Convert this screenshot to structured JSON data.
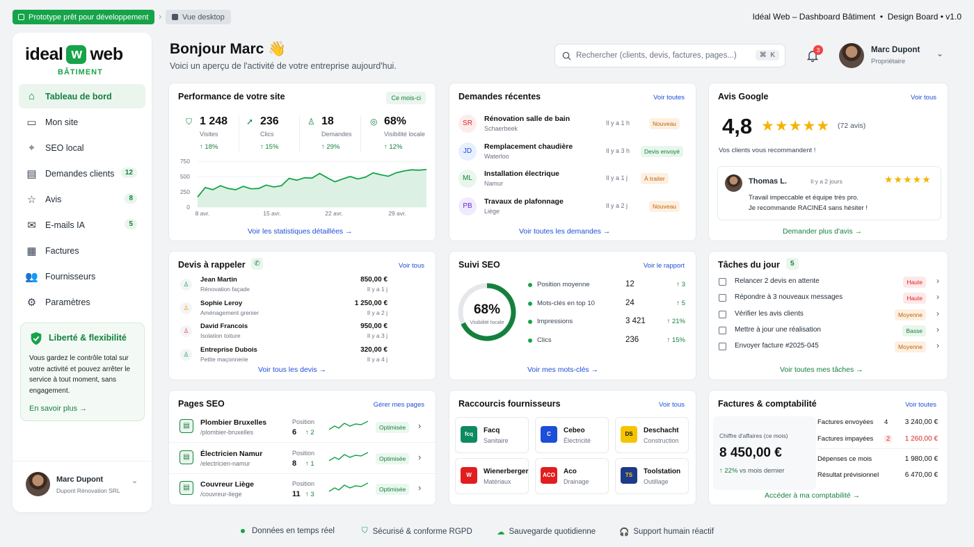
{
  "topbar": {
    "prototype_label": "Prototype prêt pour développement",
    "view_label": "Vue desktop",
    "title": "Idéal Web – Dashboard Bâtiment  •  Design Board • v1.0"
  },
  "brand": {
    "left": "ideal",
    "mark": "w",
    "right": "web",
    "sub": "BÂTIMENT"
  },
  "sidebar": {
    "items": [
      {
        "label": "Tableau de bord",
        "icon": "home-icon",
        "badge": ""
      },
      {
        "label": "Mon site",
        "icon": "monitor-icon",
        "badge": ""
      },
      {
        "label": "SEO local",
        "icon": "map-pin-icon",
        "badge": ""
      },
      {
        "label": "Demandes clients",
        "icon": "document-icon",
        "badge": "12"
      },
      {
        "label": "Avis",
        "icon": "star-icon",
        "badge": "8"
      },
      {
        "label": "E-mails IA",
        "icon": "mail-icon",
        "badge": "5"
      },
      {
        "label": "Factures",
        "icon": "invoice-icon",
        "badge": ""
      },
      {
        "label": "Fournisseurs",
        "icon": "users-icon",
        "badge": ""
      },
      {
        "label": "Paramètres",
        "icon": "gear-icon",
        "badge": ""
      }
    ],
    "promo": {
      "title": "Liberté & flexibilité",
      "text": "Vous gardez le contrôle total sur votre activité et pouvez arrêter le service à tout moment, sans engagement.",
      "link": "En savoir plus"
    },
    "user": {
      "name": "Marc Dupont",
      "company": "Dupont Rénovation SRL"
    }
  },
  "header": {
    "greeting": "Bonjour Marc 👋",
    "subtitle": "Voici un aperçu de l'activité de votre entreprise aujourd'hui.",
    "search_placeholder": "Rechercher (clients, devis, factures, pages...)",
    "search_kbd": "⌘  K",
    "notifications": "3",
    "user_name": "Marc Dupont",
    "user_role": "Propriétaire"
  },
  "performance": {
    "title": "Performance de votre site",
    "period": "Ce mois-ci",
    "link": "Voir les statistiques détaillées",
    "kpis": [
      {
        "value": "1 248",
        "label": "Visites",
        "delta": "↑ 18%"
      },
      {
        "value": "236",
        "label": "Clics",
        "delta": "↑ 15%"
      },
      {
        "value": "18",
        "label": "Demandes",
        "delta": "↑ 29%"
      },
      {
        "value": "68%",
        "label": "Visibilité locale",
        "delta": "↑ 12%"
      }
    ]
  },
  "chart_data": {
    "type": "area",
    "x": [
      1,
      2,
      3,
      4,
      5,
      6,
      7,
      8,
      9,
      10,
      11,
      12,
      13,
      14,
      15,
      16,
      17,
      18,
      19,
      20,
      21,
      22,
      23,
      24,
      25,
      26,
      27,
      28,
      29,
      30,
      31
    ],
    "values": [
      165,
      320,
      285,
      350,
      305,
      285,
      340,
      300,
      305,
      360,
      330,
      350,
      470,
      440,
      480,
      475,
      550,
      480,
      415,
      460,
      500,
      460,
      490,
      560,
      530,
      505,
      560,
      590,
      610,
      605,
      615
    ],
    "xticks": [
      "8 avr.",
      "15 avr.",
      "22 avr.",
      "29 avr."
    ],
    "yticks": [
      "750",
      "500",
      "250",
      "0"
    ],
    "ylim": [
      0,
      750
    ],
    "color": "#16a34a"
  },
  "requests": {
    "title": "Demandes récentes",
    "link_top": "Voir toutes",
    "link": "Voir toutes les demandes",
    "items": [
      {
        "initials": "SR",
        "title": "Rénovation salle de bain",
        "city": "Schaerbeek",
        "time": "Il y a 1 h",
        "status": "Nouveau",
        "tone": "orange"
      },
      {
        "initials": "JD",
        "title": "Remplacement chaudière",
        "city": "Waterloo",
        "time": "Il y a 3 h",
        "status": "Devis envoyé",
        "tone": "green"
      },
      {
        "initials": "ML",
        "title": "Installation électrique",
        "city": "Namur",
        "time": "Il y a 1 j",
        "status": "À traiter",
        "tone": "orange"
      },
      {
        "initials": "PB",
        "title": "Travaux de plafonnage",
        "city": "Liège",
        "time": "Il y a 2 j",
        "status": "Nouveau",
        "tone": "orange"
      }
    ]
  },
  "reviews": {
    "title": "Avis Google",
    "link_top": "Voir tous",
    "rating": "4,8",
    "stars": "★★★★★",
    "count": "(72 avis)",
    "caption": "Vos clients vous recommandent !",
    "review": {
      "author": "Thomas L.",
      "time": "Il y a 2 jours",
      "stars": "★★★★★",
      "text1": "Travail impeccable et équipe très pro.",
      "text2": "Je recommande RACINE4 sans hésiter !"
    },
    "link": "Demander plus d'avis"
  },
  "quotes": {
    "title": "Devis à rappeler",
    "link_top": "Voir tous",
    "link": "Voir tous les devis",
    "items": [
      {
        "name": "Jean Martin",
        "desc": "Rénovation façade",
        "amount": "850,00 €",
        "time": "Il y a 1 j",
        "color": "#16a34a"
      },
      {
        "name": "Sophie Leroy",
        "desc": "Aménagement grenier",
        "amount": "1 250,00 €",
        "time": "Il y a 2 j",
        "color": "#f59e0b"
      },
      {
        "name": "David Francois",
        "desc": "Isolation toiture",
        "amount": "950,00 €",
        "time": "Il y a 3 j",
        "color": "#ef4444"
      },
      {
        "name": "Entreprise Dubois",
        "desc": "Petite maçonnerie",
        "amount": "320,00 €",
        "time": "Il y a 4 j",
        "color": "#16a34a"
      }
    ]
  },
  "seo": {
    "title": "Suivi SEO",
    "link_top": "Voir le rapport",
    "gauge_value": "68%",
    "gauge_label": "Visibilité locale",
    "gauge_fraction": 0.68,
    "link": "Voir mes mots-clés",
    "rows": [
      {
        "label": "Position moyenne",
        "value": "12",
        "delta": "↑ 3"
      },
      {
        "label": "Mots-clés en top 10",
        "value": "24",
        "delta": "↑ 5"
      },
      {
        "label": "Impressions",
        "value": "3 421",
        "delta": "↑ 21%"
      },
      {
        "label": "Clics",
        "value": "236",
        "delta": "↑ 15%"
      }
    ]
  },
  "tasks": {
    "title": "Tâches du jour",
    "count": "5",
    "link": "Voir toutes mes tâches",
    "items": [
      {
        "label": "Relancer 2 devis en attente",
        "priority": "Haute",
        "tone": "red"
      },
      {
        "label": "Répondre à 3 nouveaux messages",
        "priority": "Haute",
        "tone": "red"
      },
      {
        "label": "Vérifier les avis clients",
        "priority": "Moyenne",
        "tone": "orange"
      },
      {
        "label": "Mettre à jour une réalisation",
        "priority": "Basse",
        "tone": "green"
      },
      {
        "label": "Envoyer facture #2025-045",
        "priority": "Moyenne",
        "tone": "orange"
      }
    ]
  },
  "pages": {
    "title": "Pages SEO",
    "link_top": "Gérer mes pages",
    "position_label": "Position",
    "items": [
      {
        "name": "Plombier Bruxelles",
        "slug": "/plombier-bruxelles",
        "position": "6",
        "delta": "↑ 2",
        "status": "Optimisée"
      },
      {
        "name": "Électricien Namur",
        "slug": "/electricien-namur",
        "position": "8",
        "delta": "↑ 1",
        "status": "Optimisée"
      },
      {
        "name": "Couvreur Liège",
        "slug": "/couvreur-liege",
        "position": "11",
        "delta": "↑ 3",
        "status": "Optimisée"
      }
    ]
  },
  "suppliers": {
    "title": "Raccourcis fournisseurs",
    "link_top": "Voir tous",
    "items": [
      {
        "name": "Facq",
        "cat": "Sanitaire",
        "logo": "fcq",
        "bg": "#0e8a5f",
        "fg": "#fff"
      },
      {
        "name": "Cebeo",
        "cat": "Électricité",
        "logo": "C",
        "bg": "#1d4ed8",
        "fg": "#fff"
      },
      {
        "name": "Deschacht",
        "cat": "Construction",
        "logo": "DS",
        "bg": "#f5c400",
        "fg": "#111"
      },
      {
        "name": "Wienerberger",
        "cat": "Matériaux",
        "logo": "W",
        "bg": "#e11d1d",
        "fg": "#fff"
      },
      {
        "name": "Aco",
        "cat": "Drainage",
        "logo": "ACO",
        "bg": "#e11d1d",
        "fg": "#fff"
      },
      {
        "name": "Toolstation",
        "cat": "Outillage",
        "logo": "TS",
        "bg": "#1e3a8a",
        "fg": "#facc15"
      }
    ]
  },
  "finance": {
    "title": "Factures & comptabilité",
    "link_top": "Voir toutes",
    "revenue_label": "Chiffre d'affaires (ce mois)",
    "revenue": "8 450,00 €",
    "delta": "↑ 22%",
    "delta_text": "vs mois dernier",
    "link": "Accéder à ma comptabilité",
    "rows": [
      {
        "label": "Factures envoyées",
        "count": "4",
        "amount": "3 240,00 €",
        "red": false
      },
      {
        "label": "Factures impayées",
        "count": "2",
        "amount": "1 260,00 €",
        "red": true
      },
      {
        "label": "Dépenses ce mois",
        "count": "",
        "amount": "1 980,00 €",
        "red": false
      },
      {
        "label": "Résultat prévisionnel",
        "count": "",
        "amount": "6 470,00 €",
        "red": false
      }
    ]
  },
  "footer": [
    "Données en temps réel",
    "Sécurisé & conforme RGPD",
    "Sauvegarde quotidienne",
    "Support humain réactif"
  ]
}
